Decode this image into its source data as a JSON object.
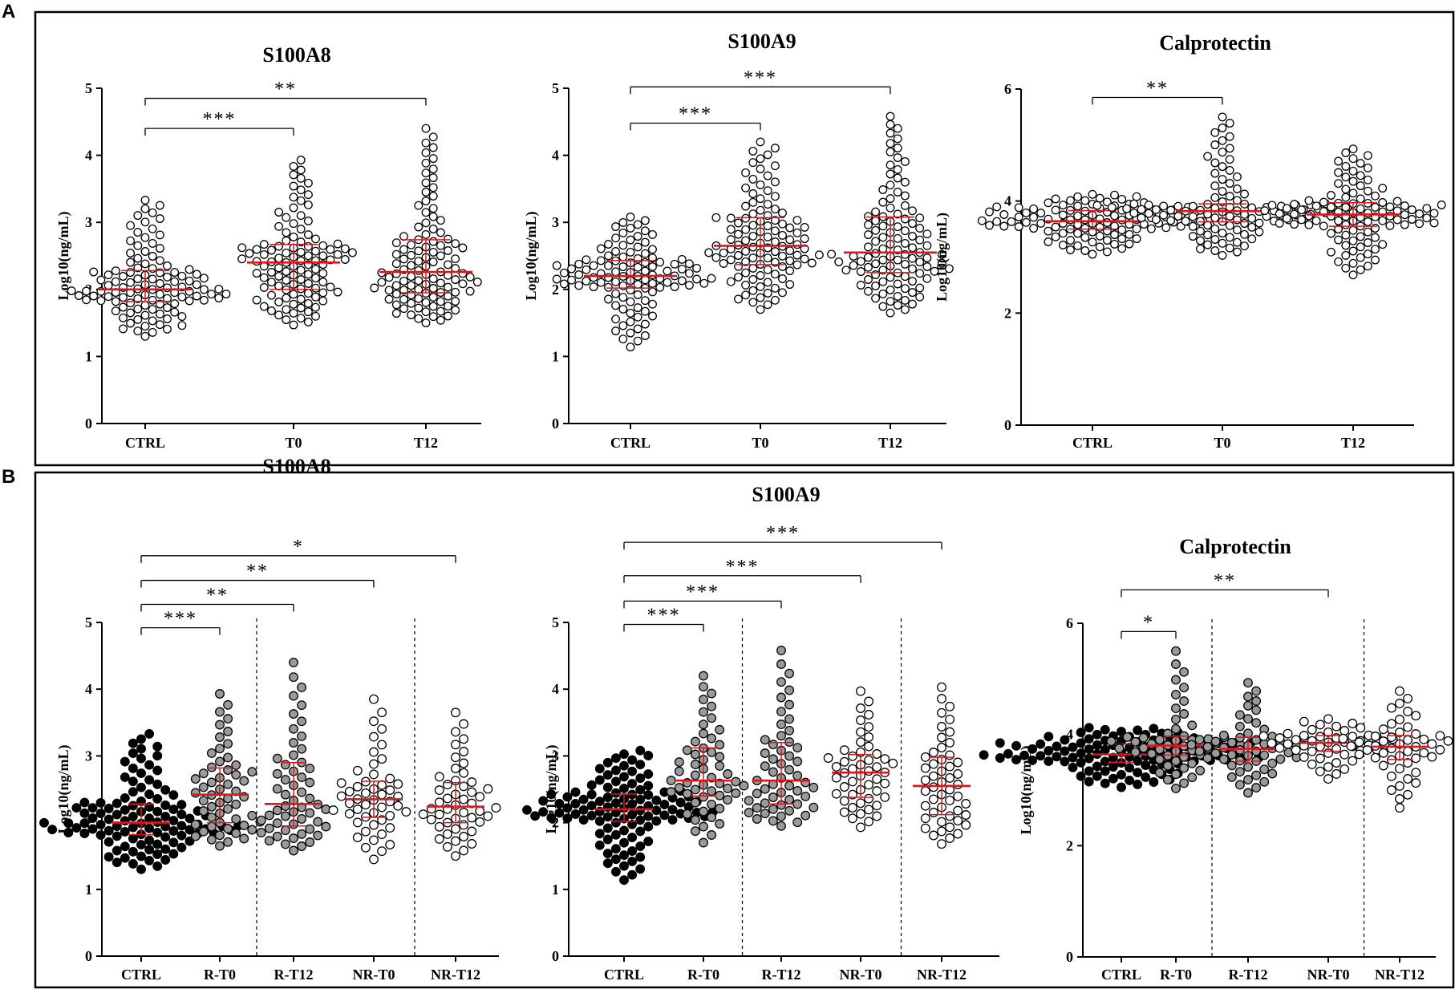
{
  "figure": {
    "panels": [
      {
        "letter": "A"
      },
      {
        "letter": "B"
      }
    ]
  },
  "chart_data": [
    {
      "panel": "A",
      "type": "scatter",
      "title": "S100A8",
      "xlabel": "",
      "ylabel": "Log10(ng/mL)",
      "ylim": [
        0,
        5
      ],
      "yticks": [
        "0",
        "1",
        "2",
        "3",
        "4",
        "5"
      ],
      "categories": [
        "CTRL",
        "T0",
        "T12"
      ],
      "series": [
        {
          "name": "CTRL",
          "fill": "#ffffff",
          "n": 110,
          "median": 2.0,
          "q1": 1.82,
          "q3": 2.28,
          "min": 1.3,
          "max": 3.33
        },
        {
          "name": "T0",
          "fill": "#ffffff",
          "n": 110,
          "median": 2.4,
          "q1": 2.0,
          "q3": 2.67,
          "min": 1.47,
          "max": 3.93
        },
        {
          "name": "T12",
          "fill": "#ffffff",
          "n": 110,
          "median": 2.26,
          "q1": 1.95,
          "q3": 2.74,
          "min": 1.5,
          "max": 4.4
        }
      ],
      "significance": [
        {
          "from": 0,
          "to": 1,
          "label": "***",
          "y": 4.4
        },
        {
          "from": 0,
          "to": 2,
          "label": "**",
          "y": 4.85
        }
      ],
      "dividers": []
    },
    {
      "panel": "A",
      "type": "scatter",
      "title": "S100A9",
      "xlabel": "",
      "ylabel": "Log10(ng/mL)",
      "ylim": [
        0,
        5
      ],
      "yticks": [
        "0",
        "1",
        "2",
        "3",
        "4",
        "5"
      ],
      "categories": [
        "CTRL",
        "T0",
        "T12"
      ],
      "series": [
        {
          "name": "CTRL",
          "fill": "#ffffff",
          "n": 110,
          "median": 2.2,
          "q1": 2.02,
          "q3": 2.43,
          "min": 1.14,
          "max": 3.08
        },
        {
          "name": "T0",
          "fill": "#ffffff",
          "n": 110,
          "median": 2.65,
          "q1": 2.37,
          "q3": 3.07,
          "min": 1.7,
          "max": 4.2
        },
        {
          "name": "T12",
          "fill": "#ffffff",
          "n": 110,
          "median": 2.55,
          "q1": 2.25,
          "q3": 3.08,
          "min": 1.65,
          "max": 4.58
        }
      ],
      "significance": [
        {
          "from": 0,
          "to": 1,
          "label": "***",
          "y": 4.48
        },
        {
          "from": 0,
          "to": 2,
          "label": "***",
          "y": 5.02
        }
      ],
      "dividers": []
    },
    {
      "panel": "A",
      "type": "scatter",
      "title": "Calprotectin",
      "xlabel": "",
      "ylabel": "Log10(ng/mL)",
      "ylim": [
        0,
        6
      ],
      "yticks": [
        "0",
        "2",
        "4",
        "6"
      ],
      "categories": [
        "CTRL",
        "T0",
        "T12"
      ],
      "series": [
        {
          "name": "CTRL",
          "fill": "#ffffff",
          "n": 110,
          "median": 3.64,
          "q1": 3.5,
          "q3": 3.83,
          "min": 3.05,
          "max": 4.12
        },
        {
          "name": "T0",
          "fill": "#ffffff",
          "n": 110,
          "median": 3.82,
          "q1": 3.63,
          "q3": 3.95,
          "min": 3.03,
          "max": 5.5
        },
        {
          "name": "T12",
          "fill": "#ffffff",
          "n": 110,
          "median": 3.76,
          "q1": 3.55,
          "q3": 3.97,
          "min": 2.68,
          "max": 4.93
        }
      ],
      "significance": [
        {
          "from": 0,
          "to": 1,
          "label": "**",
          "y": 5.85
        }
      ],
      "dividers": []
    },
    {
      "panel": "B",
      "type": "scatter",
      "title": "S100A8",
      "xlabel": "",
      "ylabel": "Log10(ng/mL)",
      "ylim": [
        0,
        5
      ],
      "yticks": [
        "0",
        "1",
        "2",
        "3",
        "4",
        "5"
      ],
      "categories": [
        "CTRL",
        "R-T0",
        "R-T12",
        "NR-T0",
        "NR-T12"
      ],
      "series": [
        {
          "name": "CTRL",
          "fill": "#000000",
          "n": 110,
          "median": 2.0,
          "q1": 1.82,
          "q3": 2.28,
          "min": 1.3,
          "max": 3.33
        },
        {
          "name": "R-T0",
          "fill": "#9a9a9a",
          "n": 55,
          "median": 2.42,
          "q1": 2.0,
          "q3": 2.82,
          "min": 1.65,
          "max": 3.93
        },
        {
          "name": "R-T12",
          "fill": "#9a9a9a",
          "n": 55,
          "median": 2.28,
          "q1": 1.95,
          "q3": 2.9,
          "min": 1.58,
          "max": 4.4
        },
        {
          "name": "NR-T0",
          "fill": "#ffffff",
          "n": 50,
          "median": 2.35,
          "q1": 2.08,
          "q3": 2.62,
          "min": 1.45,
          "max": 3.85
        },
        {
          "name": "NR-T12",
          "fill": "#ffffff",
          "n": 50,
          "median": 2.24,
          "q1": 2.0,
          "q3": 2.6,
          "min": 1.5,
          "max": 3.65
        }
      ],
      "significance": [
        {
          "from": 0,
          "to": 1,
          "label": "***",
          "y": 4.92
        },
        {
          "from": 0,
          "to": 2,
          "label": "**",
          "y": 5.27
        },
        {
          "from": 0,
          "to": 3,
          "label": "**",
          "y": 5.63
        },
        {
          "from": 0,
          "to": 4,
          "label": "*",
          "y": 6.0
        }
      ],
      "dividers": [
        1.5,
        3.5
      ]
    },
    {
      "panel": "B",
      "type": "scatter",
      "title": "S100A9",
      "xlabel": "",
      "ylabel": "Log10(ng/mL)",
      "ylim": [
        0,
        5
      ],
      "yticks": [
        "0",
        "1",
        "2",
        "3",
        "4",
        "5"
      ],
      "categories": [
        "CTRL",
        "R-T0",
        "R-T12",
        "NR-T0",
        "NR-T12"
      ],
      "series": [
        {
          "name": "CTRL",
          "fill": "#000000",
          "n": 110,
          "median": 2.2,
          "q1": 2.02,
          "q3": 2.43,
          "min": 1.14,
          "max": 3.08
        },
        {
          "name": "R-T0",
          "fill": "#9a9a9a",
          "n": 55,
          "median": 2.63,
          "q1": 2.4,
          "q3": 3.12,
          "min": 1.7,
          "max": 4.2
        },
        {
          "name": "R-T12",
          "fill": "#9a9a9a",
          "n": 55,
          "median": 2.63,
          "q1": 2.28,
          "q3": 3.2,
          "min": 1.95,
          "max": 4.58
        },
        {
          "name": "NR-T0",
          "fill": "#ffffff",
          "n": 50,
          "median": 2.75,
          "q1": 2.38,
          "q3": 3.02,
          "min": 1.93,
          "max": 3.97
        },
        {
          "name": "NR-T12",
          "fill": "#ffffff",
          "n": 50,
          "median": 2.55,
          "q1": 2.12,
          "q3": 2.98,
          "min": 1.68,
          "max": 4.03
        }
      ],
      "significance": [
        {
          "from": 0,
          "to": 1,
          "label": "***",
          "y": 4.97
        },
        {
          "from": 0,
          "to": 2,
          "label": "***",
          "y": 5.32
        },
        {
          "from": 0,
          "to": 3,
          "label": "***",
          "y": 5.7
        },
        {
          "from": 0,
          "to": 4,
          "label": "***",
          "y": 6.2
        }
      ],
      "dividers": [
        1.5,
        3.5
      ]
    },
    {
      "panel": "B",
      "type": "scatter",
      "title": "Calprotectin",
      "xlabel": "",
      "ylabel": "Log10(ng/mL)",
      "ylim": [
        0,
        6
      ],
      "yticks": [
        "0",
        "2",
        "4",
        "6"
      ],
      "categories": [
        "CTRL",
        "R-T0",
        "R-T12",
        "NR-T0",
        "NR-T12"
      ],
      "series": [
        {
          "name": "CTRL",
          "fill": "#000000",
          "n": 110,
          "median": 3.64,
          "q1": 3.5,
          "q3": 3.83,
          "min": 3.05,
          "max": 4.12
        },
        {
          "name": "R-T0",
          "fill": "#9a9a9a",
          "n": 55,
          "median": 3.8,
          "q1": 3.63,
          "q3": 3.97,
          "min": 3.03,
          "max": 5.5
        },
        {
          "name": "R-T12",
          "fill": "#9a9a9a",
          "n": 55,
          "median": 3.74,
          "q1": 3.52,
          "q3": 3.95,
          "min": 2.95,
          "max": 4.93
        },
        {
          "name": "NR-T0",
          "fill": "#ffffff",
          "n": 50,
          "median": 3.85,
          "q1": 3.7,
          "q3": 3.98,
          "min": 3.2,
          "max": 4.28
        },
        {
          "name": "NR-T12",
          "fill": "#ffffff",
          "n": 50,
          "median": 3.78,
          "q1": 3.55,
          "q3": 3.98,
          "min": 2.68,
          "max": 4.78
        }
      ],
      "significance": [
        {
          "from": 0,
          "to": 1,
          "label": "*",
          "y": 5.85
        },
        {
          "from": 0,
          "to": 3,
          "label": "**",
          "y": 6.6
        }
      ],
      "dividers": [
        1.5,
        3.5
      ]
    }
  ]
}
